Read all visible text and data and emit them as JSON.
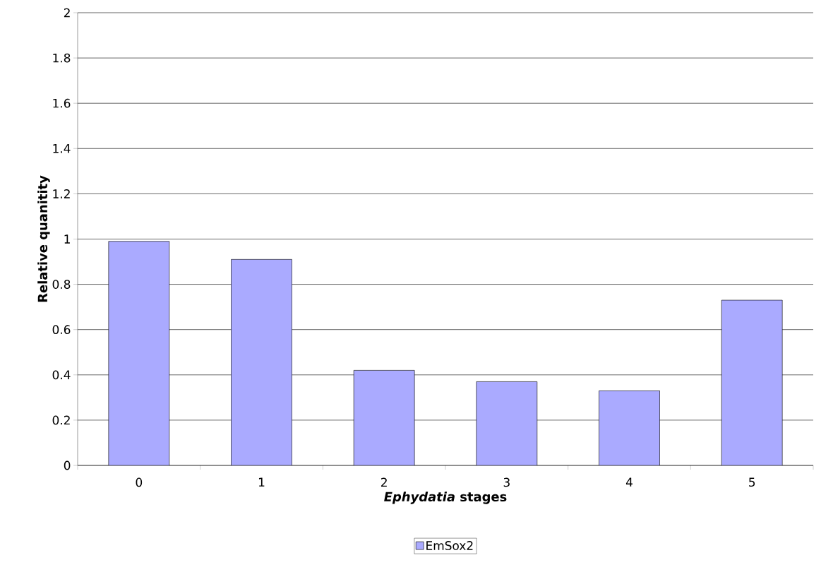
{
  "chart_data": {
    "type": "bar",
    "xlabel": "*Ephydatia* stages",
    "ylabel": "Relative quanitity",
    "categories": [
      "0",
      "1",
      "2",
      "3",
      "4",
      "5"
    ],
    "series": [
      {
        "name": "EmSox2",
        "color": "#aaaaff",
        "values": [
          0.99,
          0.91,
          0.42,
          0.37,
          0.33,
          0.73
        ]
      }
    ],
    "ylim": [
      0,
      2
    ],
    "yticks": [
      0,
      0.2,
      0.4,
      0.6,
      0.8,
      1,
      1.2,
      1.4,
      1.6,
      1.8,
      2
    ],
    "grid": "y",
    "legend": "bottom"
  }
}
